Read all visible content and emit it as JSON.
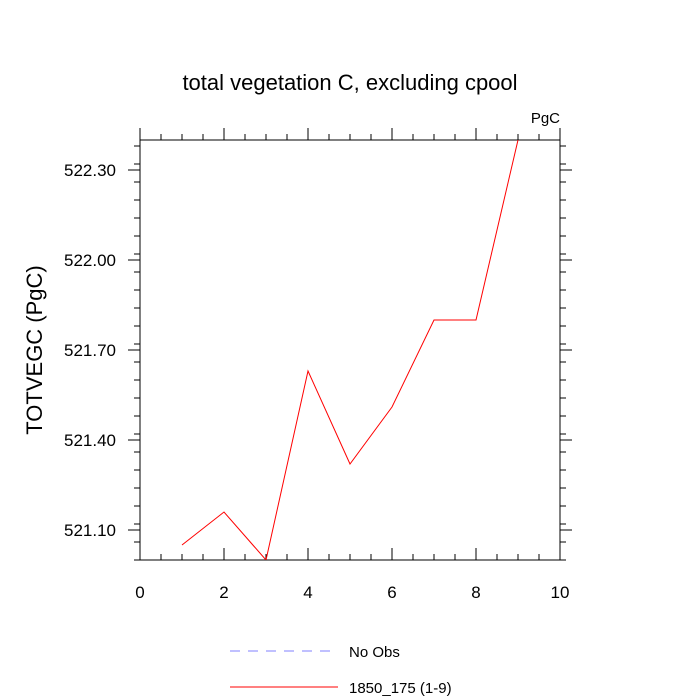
{
  "chart_data": {
    "type": "line",
    "title": "total vegetation C, excluding cpool",
    "unit_label": "PgC",
    "xlabel": "",
    "ylabel": "TOTVEGC  (PgC)",
    "xlim": [
      0,
      10
    ],
    "ylim": [
      521.0,
      522.4
    ],
    "xticks": [
      "0",
      "2",
      "4",
      "6",
      "8",
      "10"
    ],
    "yticks": [
      {
        "value": 521.1,
        "label": "521.10"
      },
      {
        "value": 521.4,
        "label": "521.40"
      },
      {
        "value": 521.7,
        "label": "521.70"
      },
      {
        "value": 522.0,
        "label": "522.00"
      },
      {
        "value": 522.3,
        "label": "522.30"
      }
    ],
    "grid": false,
    "legend_position": "bottom",
    "series": [
      {
        "name": "1850_175 (1-9)",
        "color": "#ff0000",
        "style": "solid",
        "x": [
          1,
          2,
          3,
          4,
          5,
          6,
          7,
          8,
          9
        ],
        "values": [
          521.05,
          521.16,
          521.0,
          521.63,
          521.32,
          521.51,
          521.8,
          521.8,
          522.4
        ]
      }
    ],
    "legend": [
      {
        "label": "No Obs",
        "color": "#8080ff",
        "style": "dashed"
      },
      {
        "label": "1850_175 (1-9)",
        "color": "#ff0000",
        "style": "solid"
      }
    ]
  }
}
